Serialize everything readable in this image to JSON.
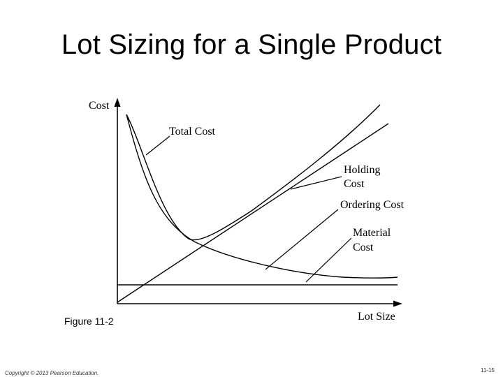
{
  "slide": {
    "title": "Lot Sizing for a Single Product",
    "figure_label": "Figure 11-2",
    "copyright": "Copyright © 2013 Pearson Education.",
    "slide_number": "11-15"
  },
  "diagram": {
    "axis_y_label": "Cost",
    "axis_x_label": "Lot Size",
    "curve_labels": {
      "total_cost": "Total Cost",
      "holding_cost_line1": "Holding",
      "holding_cost_line2": "Cost",
      "ordering_cost": "Ordering Cost",
      "material_cost_line1": "Material",
      "material_cost_line2": "Cost"
    },
    "line_color": "#000000"
  }
}
